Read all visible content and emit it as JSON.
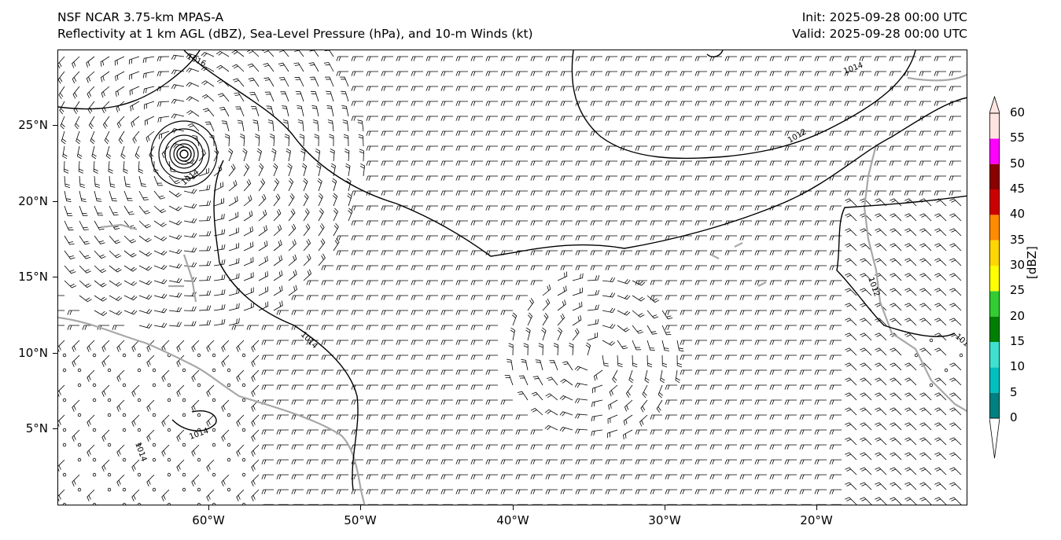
{
  "header": {
    "title_line1": "NSF NCAR 3.75-km MPAS-A",
    "title_line2": "Reflectivity at 1 km AGL (dBZ), Sea-Level Pressure (hPa), and 10-m Winds (kt)",
    "init_text": "Init: 2025-09-28 00:00 UTC",
    "valid_text": "Valid: 2025-09-28 00:00 UTC"
  },
  "map": {
    "lat_labels": [
      "25°N",
      "20°N",
      "15°N",
      "10°N",
      "5°N"
    ],
    "lon_labels": [
      "60°W",
      "50°W",
      "40°W",
      "30°W",
      "20°W"
    ],
    "isobar_labels": [
      "1016",
      "1014",
      "1012",
      "1014",
      "1014",
      "1014",
      "1012",
      "1014",
      "101"
    ],
    "isobar_color": "#000000",
    "coastline_color": "#a8a8a8",
    "barb_color": "#000000"
  },
  "colorbar": {
    "title": "[dBZ]",
    "ticks": [
      "0",
      "5",
      "10",
      "15",
      "20",
      "25",
      "30",
      "35",
      "40",
      "45",
      "50",
      "55",
      "60"
    ],
    "colors": [
      "#ffffff",
      "#008080",
      "#00c0c0",
      "#40e0d0",
      "#008000",
      "#32cd32",
      "#ffff00",
      "#ffd700",
      "#ff8c00",
      "#cc0000",
      "#8b0000",
      "#ff00ff",
      "#ffe4e1"
    ]
  }
}
